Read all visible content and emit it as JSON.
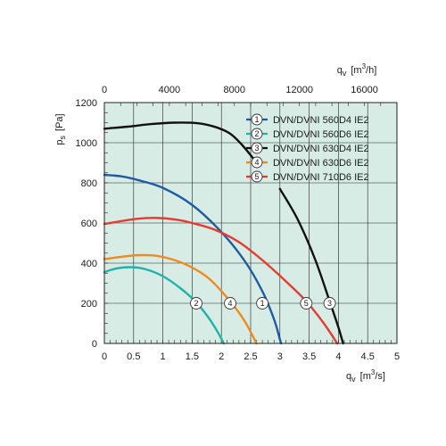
{
  "chart_data": {
    "type": "line",
    "background": "#d8ece6",
    "grid": true,
    "legend_position": "top-right",
    "xlim": [
      0,
      5
    ],
    "ylim": [
      0,
      1200
    ],
    "x_ticks": [
      "0",
      "0.5",
      "1",
      "1.5",
      "2",
      "2.5",
      "3",
      "3.5",
      "4",
      "4.5",
      "5"
    ],
    "y_ticks": [
      "0",
      "200",
      "400",
      "600",
      "800",
      "1000",
      "1200"
    ],
    "top_axis": {
      "label_q": "q",
      "label_sub": "v",
      "label_unit_open": "[m",
      "label_unit_sup": "3",
      "label_unit_close": "/h]",
      "ticks": [
        "0",
        "4000",
        "8000",
        "12000",
        "16000"
      ],
      "tick_values_m3h": [
        0,
        4000,
        8000,
        12000,
        16000
      ]
    },
    "xlabel": {
      "q": "q",
      "sub": "v",
      "unit_open": "[m",
      "unit_sup": "3",
      "unit_close": "/s]"
    },
    "ylabel": {
      "p": "p",
      "sub": "s",
      "unit": "[Pa]"
    },
    "series": [
      {
        "id": "1",
        "name": "DVN/DVNI 560D4 IE2",
        "color": "#1f5aa6",
        "marker_x": 2.7,
        "points": [
          [
            0,
            840
          ],
          [
            0.3,
            832
          ],
          [
            0.6,
            812
          ],
          [
            1.0,
            775
          ],
          [
            1.5,
            690
          ],
          [
            2.0,
            555
          ],
          [
            2.4,
            410
          ],
          [
            2.7,
            260
          ],
          [
            2.9,
            120
          ],
          [
            3.0,
            20
          ],
          [
            3.02,
            0
          ]
        ]
      },
      {
        "id": "2",
        "name": "DVN/DVNI 560D6 IE2",
        "color": "#22b3a8",
        "marker_x": 1.57,
        "points": [
          [
            0,
            355
          ],
          [
            0.2,
            373
          ],
          [
            0.45,
            380
          ],
          [
            0.7,
            370
          ],
          [
            1.0,
            335
          ],
          [
            1.3,
            275
          ],
          [
            1.57,
            205
          ],
          [
            1.8,
            120
          ],
          [
            1.95,
            50
          ],
          [
            2.04,
            0
          ]
        ]
      },
      {
        "id": "3",
        "name": "DVN/DVNI 630D4 IE2",
        "color": "#111111",
        "marker_x": 3.85,
        "points": [
          [
            0,
            1070
          ],
          [
            0.4,
            1080
          ],
          [
            0.8,
            1093
          ],
          [
            1.2,
            1100
          ],
          [
            1.6,
            1097
          ],
          [
            1.9,
            1078
          ],
          [
            2.15,
            1045
          ],
          [
            2.35,
            990
          ],
          [
            2.55,
            920
          ]
        ],
        "points_b": [
          [
            3.0,
            770
          ],
          [
            3.3,
            620
          ],
          [
            3.6,
            420
          ],
          [
            3.85,
            210
          ],
          [
            4.0,
            80
          ],
          [
            4.08,
            0
          ]
        ]
      },
      {
        "id": "4",
        "name": "DVN/DVNI 630D6 IE2",
        "color": "#f08a1c",
        "marker_x": 2.15,
        "points": [
          [
            0,
            420
          ],
          [
            0.3,
            432
          ],
          [
            0.6,
            440
          ],
          [
            0.9,
            436
          ],
          [
            1.2,
            415
          ],
          [
            1.5,
            378
          ],
          [
            1.8,
            320
          ],
          [
            2.15,
            210
          ],
          [
            2.4,
            110
          ],
          [
            2.6,
            0
          ]
        ]
      },
      {
        "id": "5",
        "name": "DVN/DVNI 710D6 IE2",
        "color": "#e83a2e",
        "marker_x": 3.45,
        "points": [
          [
            0,
            595
          ],
          [
            0.3,
            610
          ],
          [
            0.6,
            622
          ],
          [
            0.9,
            625
          ],
          [
            1.2,
            618
          ],
          [
            1.5,
            600
          ],
          [
            1.9,
            565
          ],
          [
            2.3,
            505
          ],
          [
            2.7,
            415
          ],
          [
            3.1,
            310
          ],
          [
            3.45,
            210
          ],
          [
            3.75,
            100
          ],
          [
            3.98,
            0
          ]
        ]
      }
    ]
  }
}
